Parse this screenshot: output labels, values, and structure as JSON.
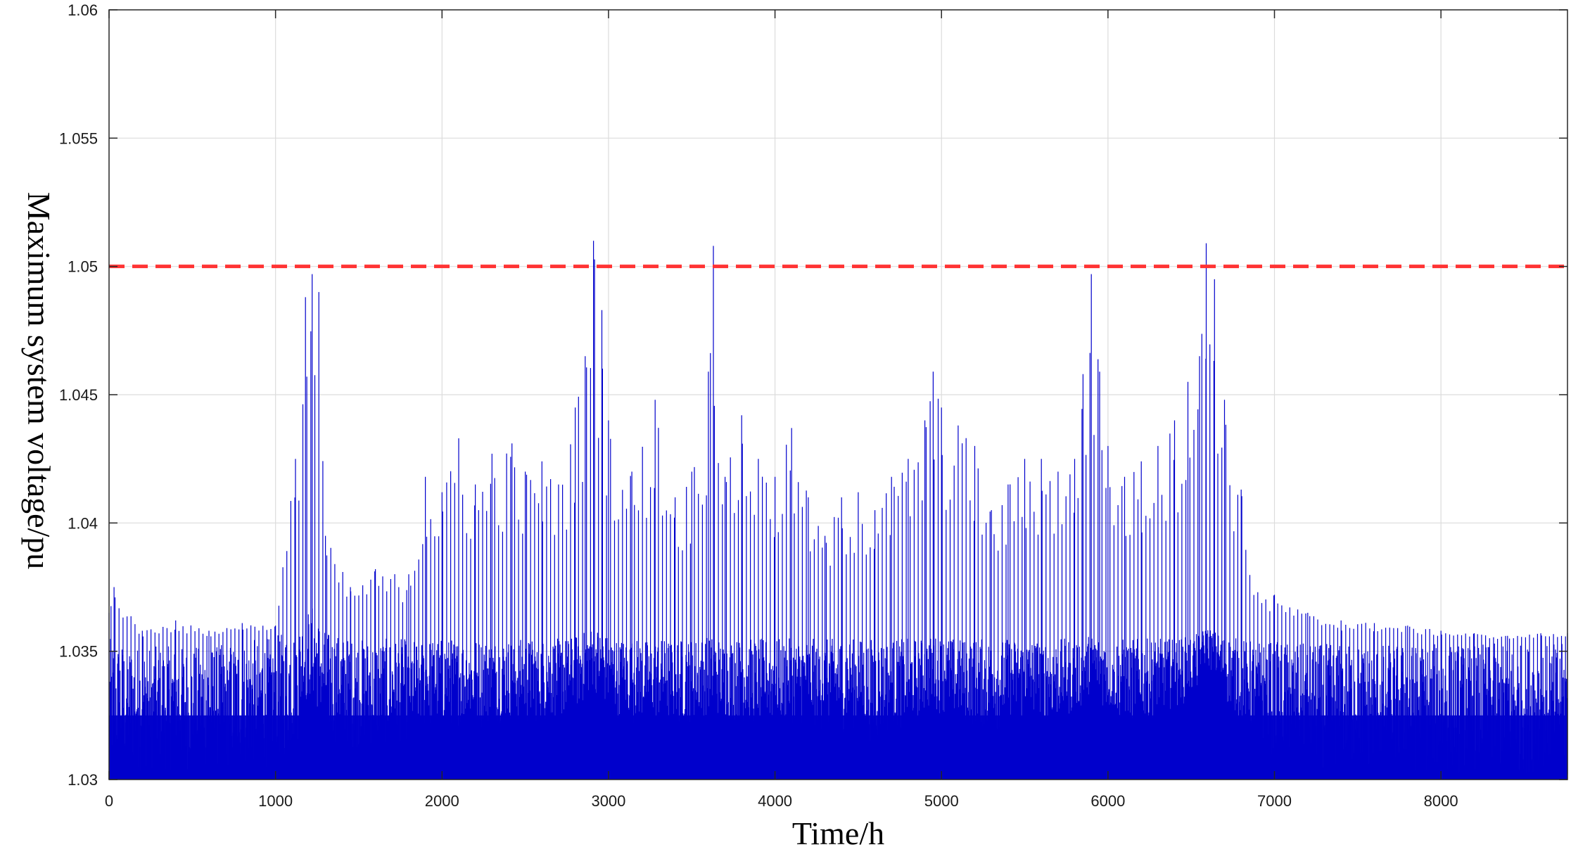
{
  "chart_data": {
    "type": "line",
    "title": "",
    "xlabel": "Time/h",
    "ylabel": "Maximum system voltage/pu",
    "xlim": [
      0,
      8760
    ],
    "ylim": [
      1.03,
      1.06
    ],
    "xticks": [
      0,
      1000,
      2000,
      3000,
      4000,
      5000,
      6000,
      7000,
      8000
    ],
    "xtick_labels": [
      "0",
      "1000",
      "2000",
      "3000",
      "4000",
      "5000",
      "6000",
      "7000",
      "8000"
    ],
    "yticks": [
      1.03,
      1.035,
      1.04,
      1.045,
      1.05,
      1.055,
      1.06
    ],
    "ytick_labels": [
      "1.03",
      "1.035",
      "1.04",
      "1.045",
      "1.05",
      "1.055",
      "1.06"
    ],
    "grid": true,
    "legend": "none",
    "series": [
      {
        "color": "#0000cc",
        "style": "solid",
        "description_points": {
          "x": [
            0,
            30,
            200,
            400,
            600,
            800,
            1000,
            1120,
            1180,
            1220,
            1260,
            1300,
            1450,
            1600,
            1800,
            1900,
            2000,
            2100,
            2200,
            2300,
            2420,
            2500,
            2600,
            2700,
            2800,
            2860,
            2910,
            2960,
            3000,
            3140,
            3280,
            3400,
            3500,
            3600,
            3630,
            3700,
            3800,
            3900,
            4000,
            4100,
            4200,
            4300,
            4400,
            4500,
            4600,
            4700,
            4800,
            4900,
            4950,
            5000,
            5100,
            5200,
            5300,
            5400,
            5500,
            5600,
            5700,
            5800,
            5850,
            5900,
            5950,
            6000,
            6100,
            6200,
            6300,
            6400,
            6480,
            6550,
            6590,
            6640,
            6700,
            6800,
            6900,
            7000,
            7200,
            7400,
            7600,
            7800,
            8000,
            8200,
            8400,
            8600,
            8760
          ],
          "peak": [
            1.0365,
            1.0375,
            1.0358,
            1.0362,
            1.0358,
            1.0361,
            1.036,
            1.0425,
            1.0488,
            1.0497,
            1.049,
            1.0395,
            1.0375,
            1.0382,
            1.038,
            1.0418,
            1.0412,
            1.0433,
            1.0415,
            1.0427,
            1.0431,
            1.042,
            1.0424,
            1.0415,
            1.0445,
            1.0465,
            1.051,
            1.0483,
            1.044,
            1.042,
            1.0448,
            1.041,
            1.042,
            1.0459,
            1.0508,
            1.0418,
            1.0442,
            1.0425,
            1.0418,
            1.0437,
            1.041,
            1.0395,
            1.041,
            1.0412,
            1.0405,
            1.0418,
            1.0425,
            1.044,
            1.0459,
            1.0445,
            1.0438,
            1.043,
            1.0405,
            1.0415,
            1.0425,
            1.0425,
            1.042,
            1.0425,
            1.0458,
            1.0497,
            1.0459,
            1.043,
            1.0418,
            1.0424,
            1.043,
            1.044,
            1.0455,
            1.0465,
            1.0509,
            1.0495,
            1.0448,
            1.0413,
            1.0373,
            1.0372,
            1.0365,
            1.0362,
            1.0361,
            1.036,
            1.0358,
            1.0357,
            1.0356,
            1.0357,
            1.0357
          ],
          "base_max": [
            1.0355,
            1.0355,
            1.0352,
            1.0352,
            1.0352,
            1.0354,
            1.0356,
            1.036,
            1.0365,
            1.0368,
            1.0362,
            1.0358,
            1.0355,
            1.0355,
            1.0355,
            1.0355,
            1.0355,
            1.0355,
            1.0355,
            1.0355,
            1.0355,
            1.0355,
            1.0355,
            1.0355,
            1.0356,
            1.0358,
            1.036,
            1.0358,
            1.0356,
            1.0355,
            1.0355,
            1.0355,
            1.0355,
            1.0356,
            1.0356,
            1.0355,
            1.0355,
            1.0355,
            1.0355,
            1.0355,
            1.0355,
            1.0355,
            1.0355,
            1.0355,
            1.0355,
            1.0355,
            1.0355,
            1.0355,
            1.0356,
            1.0356,
            1.0355,
            1.0355,
            1.0355,
            1.0355,
            1.0355,
            1.0355,
            1.0355,
            1.0355,
            1.0355,
            1.0357,
            1.0356,
            1.0355,
            1.0355,
            1.0355,
            1.0355,
            1.0355,
            1.0356,
            1.0357,
            1.036,
            1.0358,
            1.0356,
            1.0355,
            1.0354,
            1.0354,
            1.0353,
            1.0353,
            1.0353,
            1.0353,
            1.0353,
            1.0353,
            1.0353,
            1.0353,
            1.0353
          ],
          "floor_min": [
            1.03,
            1.03,
            1.0303,
            1.0303,
            1.0303,
            1.0303,
            1.0305,
            1.031,
            1.0328,
            1.033,
            1.0325,
            1.0315,
            1.0312,
            1.0312,
            1.0315,
            1.0318,
            1.032,
            1.032,
            1.0318,
            1.0322,
            1.0322,
            1.032,
            1.0322,
            1.0322,
            1.0325,
            1.033,
            1.0335,
            1.033,
            1.0325,
            1.0322,
            1.0322,
            1.032,
            1.0322,
            1.0325,
            1.0325,
            1.0322,
            1.0322,
            1.032,
            1.032,
            1.0322,
            1.032,
            1.0318,
            1.0318,
            1.032,
            1.0312,
            1.0318,
            1.032,
            1.0325,
            1.0328,
            1.0325,
            1.0322,
            1.032,
            1.0318,
            1.032,
            1.0322,
            1.0322,
            1.0322,
            1.0325,
            1.0328,
            1.0335,
            1.033,
            1.0325,
            1.0322,
            1.0322,
            1.0325,
            1.0328,
            1.033,
            1.0335,
            1.0345,
            1.034,
            1.033,
            1.0322,
            1.0315,
            1.0308,
            1.0305,
            1.0303,
            1.0303,
            1.0302,
            1.0302,
            1.0302,
            1.0302,
            1.0302,
            1.0302
          ]
        }
      },
      {
        "color": "#ff3333",
        "style": "dashed",
        "x": [
          0,
          8760
        ],
        "y": [
          1.05,
          1.05
        ]
      }
    ]
  }
}
